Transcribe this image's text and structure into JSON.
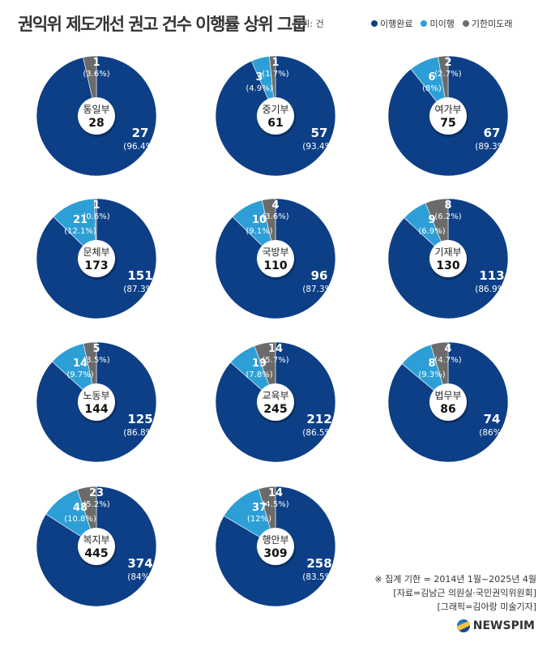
{
  "title": "권익위 제도개선 권고 건수 이행률 상위 그룹",
  "unit": "단위: 건",
  "legend": [
    {
      "label": "이행완료",
      "color": "#0d3f86"
    },
    {
      "label": "미이행",
      "color": "#2d9fd6"
    },
    {
      "label": "기한미도래",
      "color": "#6b6b6b"
    }
  ],
  "notes": [
    "※ 집계 기한 = 2014년 1월~2025년 4월",
    "[자료=김남근 의원실·국민권익위원회]",
    "[그래픽=김아랑 미술기자]"
  ],
  "brand": "NEWSPIM",
  "chart_data": [
    {
      "type": "pie",
      "name": "통일부",
      "total": "28",
      "values": [
        27,
        0,
        1
      ],
      "labels": [
        "27",
        "",
        "1"
      ],
      "pcts": [
        "(96.4%)",
        "",
        "(3.6%)"
      ]
    },
    {
      "type": "pie",
      "name": "중기부",
      "total": "61",
      "values": [
        57,
        3,
        1
      ],
      "labels": [
        "57",
        "3",
        "1"
      ],
      "pcts": [
        "(93.4%)",
        "(4.9%)",
        "(1.7%)"
      ]
    },
    {
      "type": "pie",
      "name": "여가부",
      "total": "75",
      "values": [
        67,
        6,
        2
      ],
      "labels": [
        "67",
        "6",
        "2"
      ],
      "pcts": [
        "(89.3%)",
        "(8%)",
        "(2.7%)"
      ]
    },
    {
      "type": "pie",
      "name": "문체부",
      "total": "173",
      "values": [
        151,
        21,
        1
      ],
      "labels": [
        "151",
        "21",
        "1"
      ],
      "pcts": [
        "(87.3%)",
        "(12.1%)",
        "(0.6%)"
      ]
    },
    {
      "type": "pie",
      "name": "국방부",
      "total": "110",
      "values": [
        96,
        10,
        4
      ],
      "labels": [
        "96",
        "10",
        "4"
      ],
      "pcts": [
        "(87.3%)",
        "(9.1%)",
        "(3.6%)"
      ]
    },
    {
      "type": "pie",
      "name": "기재부",
      "total": "130",
      "values": [
        113,
        9,
        8
      ],
      "labels": [
        "113",
        "9",
        "8"
      ],
      "pcts": [
        "(86.9%)",
        "(6.9%)",
        "(6.2%)"
      ]
    },
    {
      "type": "pie",
      "name": "노동부",
      "total": "144",
      "values": [
        125,
        14,
        5
      ],
      "labels": [
        "125",
        "14",
        "5"
      ],
      "pcts": [
        "(86.8%)",
        "(9.7%)",
        "(3.5%)"
      ]
    },
    {
      "type": "pie",
      "name": "교육부",
      "total": "245",
      "values": [
        212,
        19,
        14
      ],
      "labels": [
        "212",
        "19",
        "14"
      ],
      "pcts": [
        "(86.5%)",
        "(7.8%)",
        "(5.7%)"
      ]
    },
    {
      "type": "pie",
      "name": "법무부",
      "total": "86",
      "values": [
        74,
        8,
        4
      ],
      "labels": [
        "74",
        "8",
        "4"
      ],
      "pcts": [
        "(86%)",
        "(9.3%)",
        "(4.7%)"
      ]
    },
    {
      "type": "pie",
      "name": "복지부",
      "total": "445",
      "values": [
        374,
        48,
        23
      ],
      "labels": [
        "374",
        "48",
        "23"
      ],
      "pcts": [
        "(84%)",
        "(10.8%)",
        "(5.2%)"
      ]
    },
    {
      "type": "pie",
      "name": "행안부",
      "total": "309",
      "values": [
        258,
        37,
        14
      ],
      "labels": [
        "258",
        "37",
        "14"
      ],
      "pcts": [
        "(83.5%)",
        "(12%)",
        "(4.5%)"
      ]
    }
  ]
}
